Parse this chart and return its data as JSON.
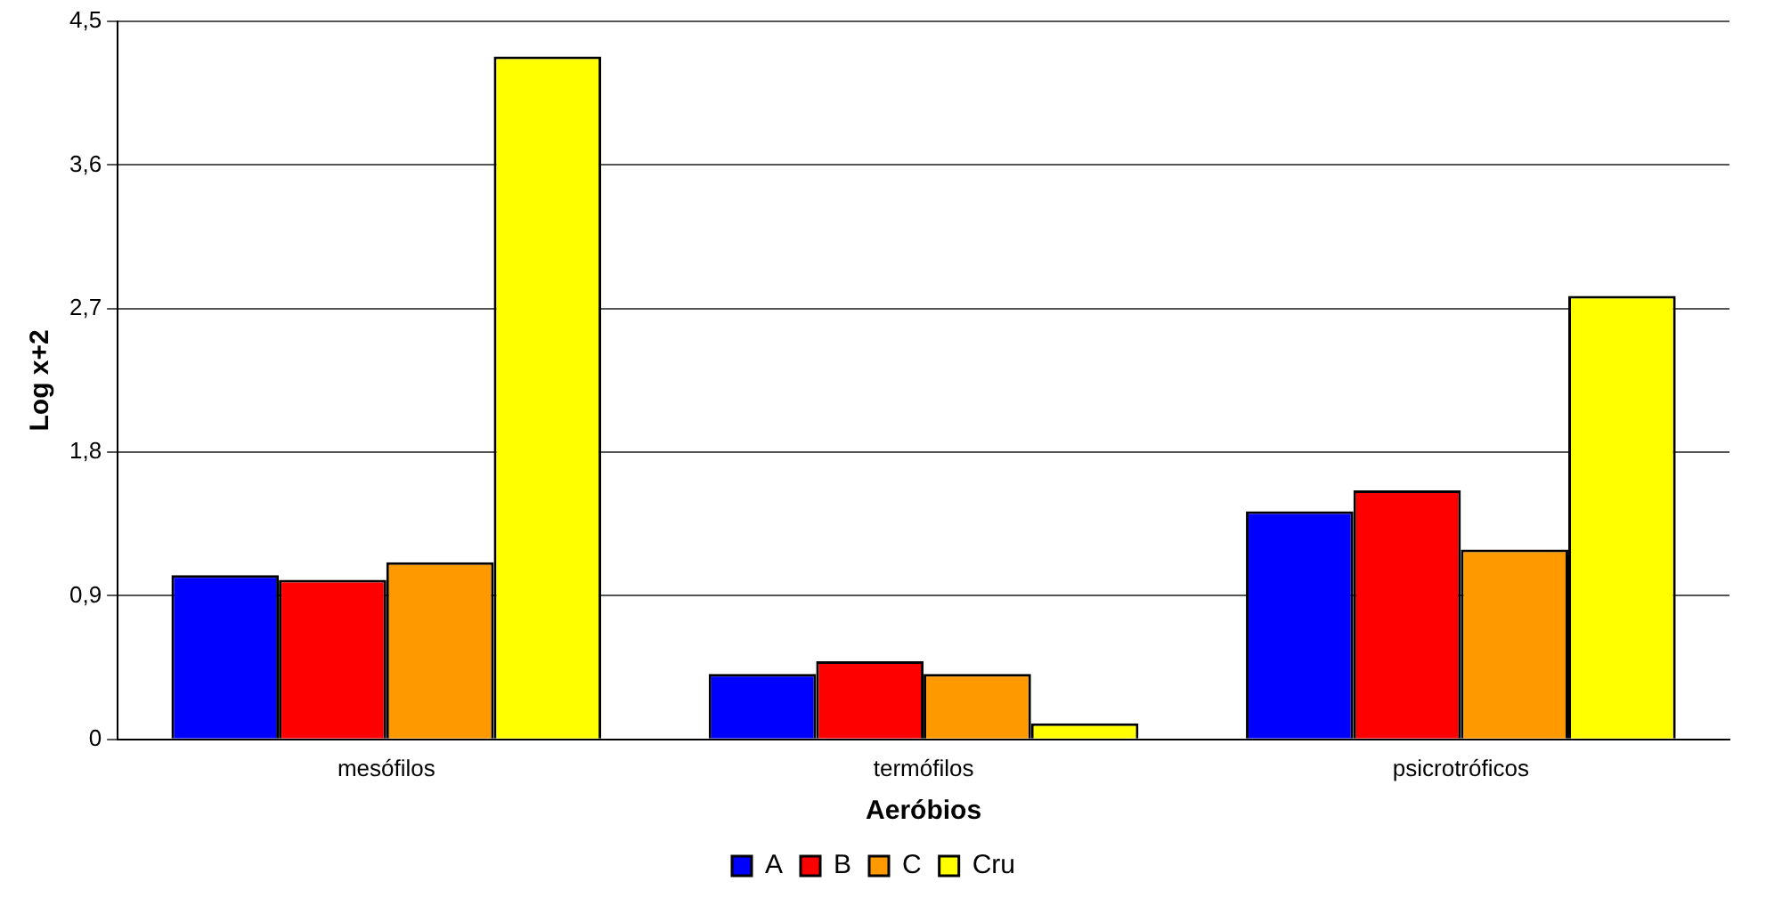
{
  "chart_data": {
    "type": "bar",
    "xlabel": "Aeróbios",
    "ylabel": "Log x+2",
    "categories": [
      "mesófilos",
      "termófilos",
      "psicrotróficos"
    ],
    "series": [
      {
        "name": "A",
        "color": "#0000ff",
        "values": [
          1.03,
          0.41,
          1.43
        ]
      },
      {
        "name": "B",
        "color": "#ff0000",
        "values": [
          1.0,
          0.49,
          1.56
        ]
      },
      {
        "name": "C",
        "color": "#ff9900",
        "values": [
          1.11,
          0.41,
          1.19
        ]
      },
      {
        "name": "Cru",
        "color": "#ffff00",
        "values": [
          4.28,
          0.1,
          2.78
        ]
      }
    ],
    "ylim": [
      0,
      4.5
    ],
    "yticks": [
      {
        "value": 0,
        "label": "0"
      },
      {
        "value": 0.9,
        "label": "0,9"
      },
      {
        "value": 1.8,
        "label": "1,8"
      },
      {
        "value": 2.7,
        "label": "2,7"
      },
      {
        "value": 3.6,
        "label": "3,6"
      },
      {
        "value": 4.5,
        "label": "4,5"
      }
    ],
    "grid": "y",
    "legend": "bottom"
  }
}
